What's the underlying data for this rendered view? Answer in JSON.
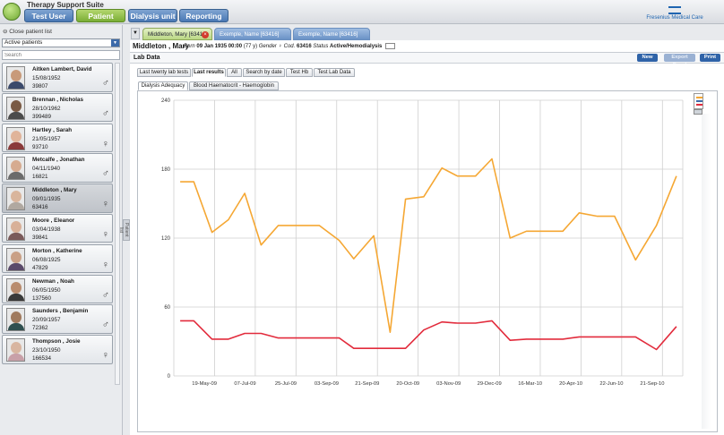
{
  "app": {
    "title": "Therapy Support Suite",
    "brand": "Fresenius Medical Care"
  },
  "nav": [
    "Test User",
    "Patient",
    "Dialysis unit",
    "Reporting"
  ],
  "sidebar": {
    "close_label": "Close patient list",
    "filter": "Active patients",
    "search_placeholder": "Search",
    "patients": [
      {
        "name": "Aitken Lambert, David",
        "dob": "15/08/1952",
        "code": "39807",
        "gender": "♂"
      },
      {
        "name": "Brennan , Nicholas",
        "dob": "28/10/1962",
        "code": "399489",
        "gender": "♂"
      },
      {
        "name": "Hartley , Sarah",
        "dob": "21/05/1957",
        "code": "93710",
        "gender": "♀"
      },
      {
        "name": "Metcalfe , Jonathan",
        "dob": "04/11/1940",
        "code": "16821",
        "gender": "♂"
      },
      {
        "name": "Middleton , Mary",
        "dob": "09/01/1935",
        "code": "63416",
        "gender": "♀"
      },
      {
        "name": "Moore , Eleanor",
        "dob": "03/04/1938",
        "code": "39841",
        "gender": "♀"
      },
      {
        "name": "Morton , Katherine",
        "dob": "06/08/1925",
        "code": "47829",
        "gender": "♀"
      },
      {
        "name": "Newman , Noah",
        "dob": "06/05/1950",
        "code": "137560",
        "gender": "♂"
      },
      {
        "name": "Saunders , Benjamin",
        "dob": "20/09/1957",
        "code": "72362",
        "gender": "♂"
      },
      {
        "name": "Thompson , Josie",
        "dob": "23/10/1950",
        "code": "166534",
        "gender": "♀"
      }
    ],
    "handle_label": "Patient list"
  },
  "tabs": {
    "menu": "▼",
    "patients": [
      "Middleton, Mary [63416]",
      "Exemple, Name [63416]",
      "Exemple, Name [63416]"
    ],
    "close": "×"
  },
  "patient": {
    "name": "Middleton , Mary",
    "born_label": "Born",
    "born": "09 Jan 1935 00:00",
    "age": "(77 y)",
    "gender_label": "Gender",
    "gender": "♀",
    "cod_label": "Cod.",
    "cod": "63416",
    "status_label": "Status",
    "status": "Active/Hemodialysis"
  },
  "section": {
    "title": "Lab Data",
    "new": "New",
    "export": "Export Excel",
    "print": "Print"
  },
  "subtabs": [
    "Last twenty lab tests",
    "Last results",
    "All",
    "Search by date",
    "Test Hb",
    "Test Lab Data"
  ],
  "charttabs": [
    "Dialysis Adequacy",
    "Blood Haematocrit - Haemoglobin"
  ],
  "colors": {
    "orange": "#f5a733",
    "red": "#e22b3c",
    "accent": "#2f63a8"
  },
  "chart_data": {
    "type": "line",
    "x_ticks": [
      "19-May-09",
      "07-Jul-09",
      "25-Jul-09",
      "03-Sep-09",
      "21-Sep-09",
      "20-Oct-09",
      "03-Nov-09",
      "29-Dec-09",
      "16-Mar-10",
      "20-Apr-10",
      "22-Jun-10",
      "21-Sep-10"
    ],
    "y_ticks": [
      "240",
      "180",
      "120",
      "60",
      "0"
    ],
    "ylim": [
      0,
      240
    ],
    "x_range": [
      0,
      560
    ],
    "grid": true,
    "series": [
      {
        "color": "#f5a733",
        "points": [
          [
            7,
            169
          ],
          [
            22,
            169
          ],
          [
            42,
            125
          ],
          [
            60,
            136
          ],
          [
            78,
            159
          ],
          [
            96,
            114
          ],
          [
            115,
            131
          ],
          [
            135,
            131
          ],
          [
            160,
            131
          ],
          [
            182,
            118
          ],
          [
            198,
            102
          ],
          [
            220,
            122
          ],
          [
            238,
            38
          ],
          [
            255,
            154
          ],
          [
            275,
            156
          ],
          [
            295,
            181
          ],
          [
            312,
            174
          ],
          [
            332,
            174
          ],
          [
            350,
            189
          ],
          [
            370,
            120
          ],
          [
            388,
            126
          ],
          [
            408,
            126
          ],
          [
            428,
            126
          ],
          [
            446,
            142
          ],
          [
            466,
            139
          ],
          [
            485,
            139
          ],
          [
            508,
            101
          ],
          [
            531,
            131
          ],
          [
            553,
            174
          ]
        ]
      },
      {
        "color": "#e22b3c",
        "points": [
          [
            7,
            48
          ],
          [
            22,
            48
          ],
          [
            42,
            32
          ],
          [
            60,
            32
          ],
          [
            78,
            37
          ],
          [
            96,
            37
          ],
          [
            115,
            33
          ],
          [
            135,
            33
          ],
          [
            160,
            33
          ],
          [
            182,
            33
          ],
          [
            198,
            24
          ],
          [
            220,
            24
          ],
          [
            238,
            24
          ],
          [
            255,
            24
          ],
          [
            275,
            40
          ],
          [
            295,
            47
          ],
          [
            312,
            46
          ],
          [
            332,
            46
          ],
          [
            350,
            48
          ],
          [
            370,
            31
          ],
          [
            388,
            32
          ],
          [
            408,
            32
          ],
          [
            428,
            32
          ],
          [
            446,
            34
          ],
          [
            466,
            34
          ],
          [
            485,
            34
          ],
          [
            508,
            34
          ],
          [
            531,
            23
          ],
          [
            553,
            43
          ]
        ]
      }
    ]
  }
}
